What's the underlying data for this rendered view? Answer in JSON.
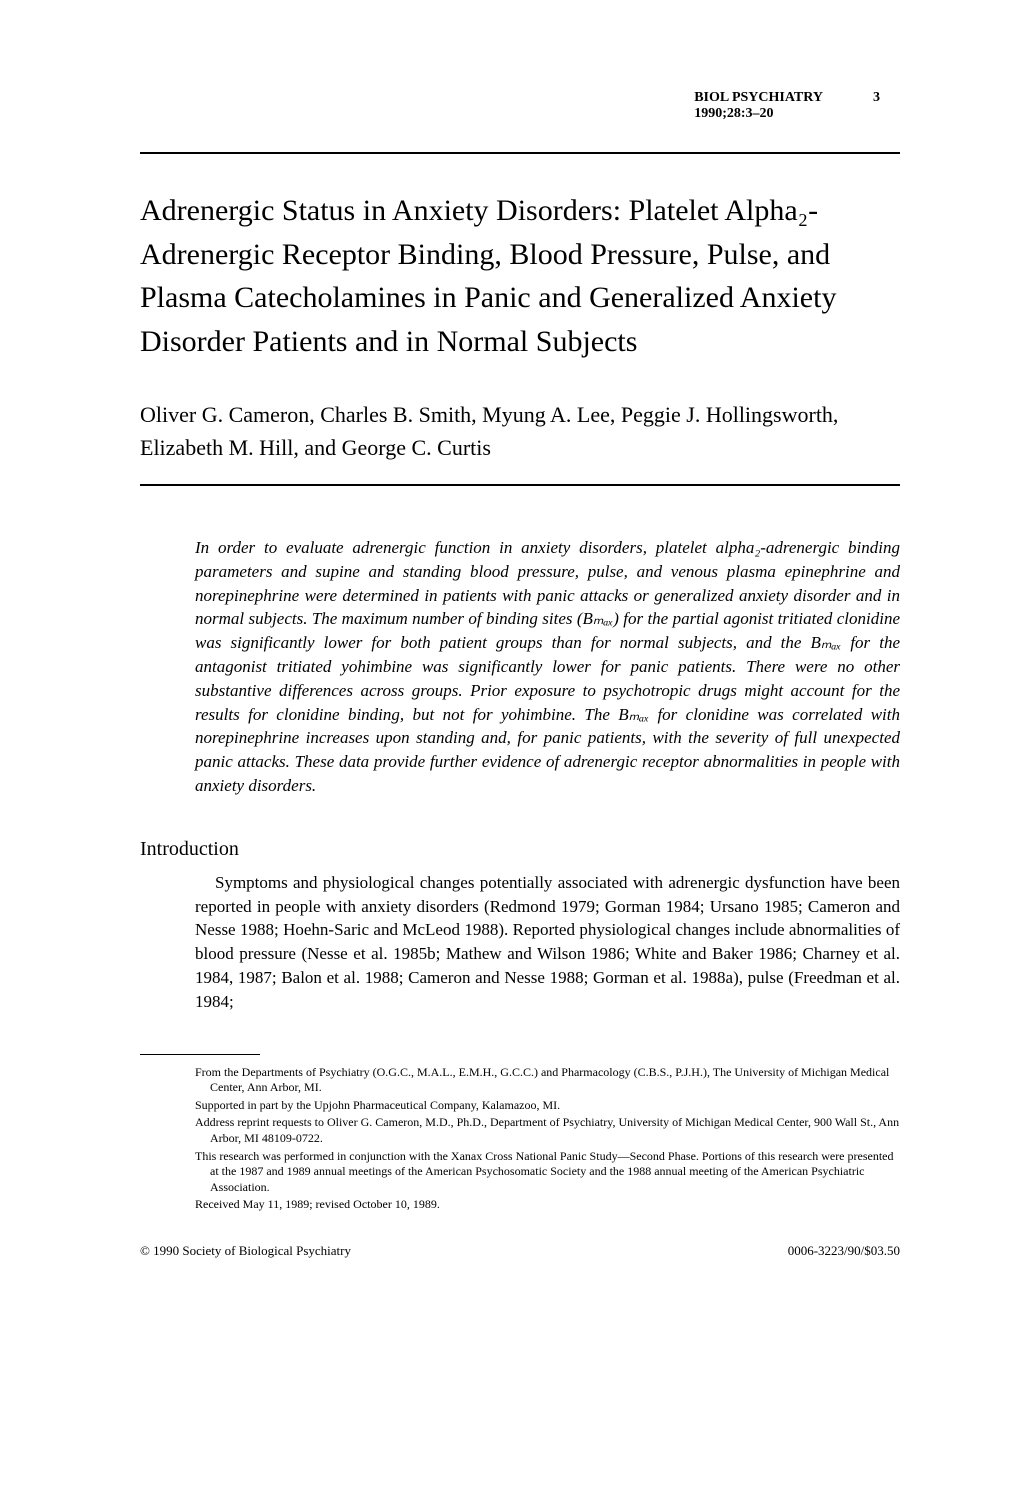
{
  "header": {
    "journal": "BIOL PSYCHIATRY",
    "issue": "1990;28:3–20",
    "page": "3"
  },
  "title": "Adrenergic Status in Anxiety Disorders: Platelet Alpha₂-Adrenergic Receptor Binding, Blood Pressure, Pulse, and Plasma Catecholamines in Panic and Generalized Anxiety Disorder Patients and in Normal Subjects",
  "authors": "Oliver G. Cameron, Charles B. Smith, Myung A. Lee, Peggie J. Hollingsworth, Elizabeth M. Hill, and George C. Curtis",
  "abstract": "In order to evaluate adrenergic function in anxiety disorders, platelet alpha₂-adrenergic binding parameters and supine and standing blood pressure, pulse, and venous plasma epinephrine and norepinephrine were determined in patients with panic attacks or generalized anxiety disorder and in normal subjects. The maximum number of binding sites (Bₘₐₓ) for the partial agonist tritiated clonidine was significantly lower for both patient groups than for normal subjects, and the Bₘₐₓ for the antagonist tritiated yohimbine was significantly lower for panic patients. There were no other substantive differences across groups. Prior exposure to psychotropic drugs might account for the results for clonidine binding, but not for yohimbine. The Bₘₐₓ for clonidine was correlated with norepinephrine increases upon standing and, for panic patients, with the severity of full unexpected panic attacks. These data provide further evidence of adrenergic receptor abnormalities in people with anxiety disorders.",
  "section_heading": "Introduction",
  "body": "Symptoms and physiological changes potentially associated with adrenergic dysfunction have been reported in people with anxiety disorders (Redmond 1979; Gorman 1984; Ursano 1985; Cameron and Nesse 1988; Hoehn-Saric and McLeod 1988). Reported physiological changes include abnormalities of blood pressure (Nesse et al. 1985b; Mathew and Wilson 1986; White and Baker 1986; Charney et al. 1984, 1987; Balon et al. 1988; Cameron and Nesse 1988; Gorman et al. 1988a), pulse (Freedman et al. 1984;",
  "footnotes": [
    "From the Departments of Psychiatry (O.G.C., M.A.L., E.M.H., G.C.C.) and Pharmacology (C.B.S., P.J.H.), The University of Michigan Medical Center, Ann Arbor, MI.",
    "Supported in part by the Upjohn Pharmaceutical Company, Kalamazoo, MI.",
    "Address reprint requests to Oliver G. Cameron, M.D., Ph.D., Department of Psychiatry, University of Michigan Medical Center, 900 Wall St., Ann Arbor, MI 48109-0722.",
    "This research was performed in conjunction with the Xanax Cross National Panic Study—Second Phase. Portions of this research were presented at the 1987 and 1989 annual meetings of the American Psychosomatic Society and the 1988 annual meeting of the American Psychiatric Association.",
    "Received May 11, 1989; revised October 10, 1989."
  ],
  "copyright": "© 1990 Society of Biological Psychiatry",
  "issn": "0006-3223/90/$03.50"
}
